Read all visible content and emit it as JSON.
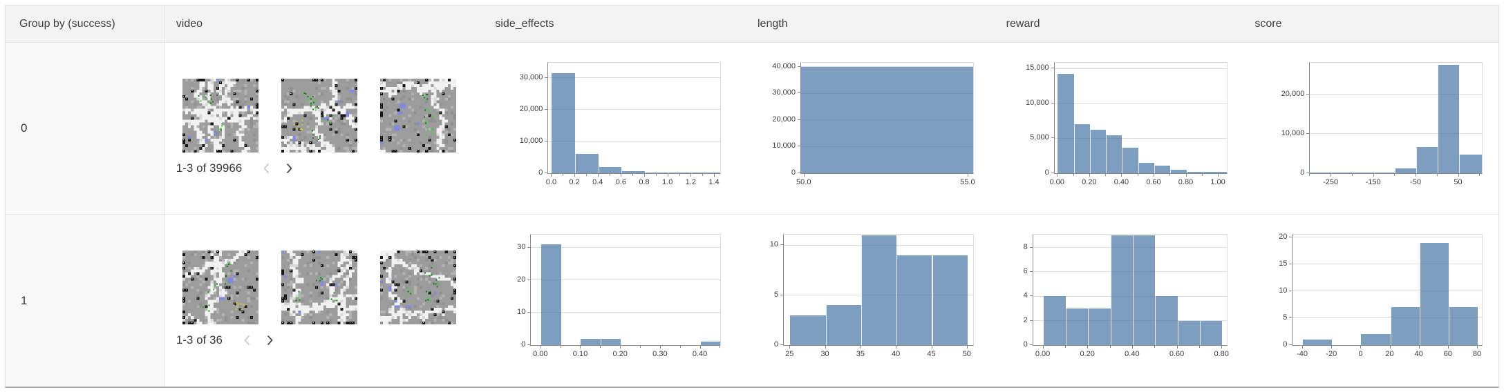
{
  "colors": {
    "bar_fill": "#4c78a8",
    "bar_fill_opacity": 0.72,
    "header_bg": "#f3f3f3",
    "group_column_bg": "#f8f8f8",
    "table_border": "#dedede",
    "table_bottom_border": "#b3b3b3",
    "axis_line": "#8a8a8a",
    "grid_line": "#dcdcdc",
    "tick_text": "#3d3d3d"
  },
  "table": {
    "columns": [
      {
        "key": "group",
        "label": "Group by (success)"
      },
      {
        "key": "video",
        "label": "video"
      },
      {
        "key": "side_effects",
        "label": "side_effects"
      },
      {
        "key": "length",
        "label": "length"
      },
      {
        "key": "reward",
        "label": "reward"
      },
      {
        "key": "score",
        "label": "score"
      }
    ],
    "rows": [
      {
        "group_label": "0",
        "video": {
          "pagination_label": "1-3 of 39966",
          "prev_enabled": false,
          "next_enabled": true,
          "thumbnail_count": 3
        }
      },
      {
        "group_label": "1",
        "video": {
          "pagination_label": "1-3 of 36",
          "prev_enabled": false,
          "next_enabled": true,
          "thumbnail_count": 3
        }
      }
    ]
  },
  "chart_data": [
    {
      "row_group": "0",
      "column": "side_effects",
      "type": "bar",
      "subtype": "histogram",
      "xlim": [
        -0.03,
        1.45
      ],
      "ylim": [
        0,
        34700
      ],
      "grid": true,
      "bins": [
        {
          "x0": 0.0,
          "x1": 0.2,
          "count": 31500
        },
        {
          "x0": 0.2,
          "x1": 0.4,
          "count": 6100
        },
        {
          "x0": 0.4,
          "x1": 0.6,
          "count": 2000
        },
        {
          "x0": 0.6,
          "x1": 0.8,
          "count": 550
        },
        {
          "x0": 0.8,
          "x1": 1.0,
          "count": 150
        },
        {
          "x0": 1.0,
          "x1": 1.2,
          "count": 90
        },
        {
          "x0": 1.2,
          "x1": 1.45,
          "count": 90
        }
      ],
      "xticks": [
        {
          "v": 0,
          "label": "0.0"
        },
        {
          "v": 0.2,
          "label": "0.2"
        },
        {
          "v": 0.4,
          "label": "0.4"
        },
        {
          "v": 0.6,
          "label": "0.6"
        },
        {
          "v": 0.8,
          "label": "0.8"
        },
        {
          "v": 1.0,
          "label": "1.0"
        },
        {
          "v": 1.2,
          "label": "1.2"
        },
        {
          "v": 1.4,
          "label": "1.4"
        }
      ],
      "xminor": [
        0.1,
        0.3,
        0.5,
        0.7,
        0.9,
        1.1,
        1.3
      ],
      "yticks": [
        {
          "v": 0,
          "label": "0"
        },
        {
          "v": 10000,
          "label": "10,000"
        },
        {
          "v": 20000,
          "label": "20,000"
        },
        {
          "v": 30000,
          "label": "30,000"
        }
      ]
    },
    {
      "row_group": "0",
      "column": "length",
      "type": "bar",
      "subtype": "histogram",
      "xlim": [
        49.9,
        55.15
      ],
      "ylim": [
        0,
        41500
      ],
      "grid": true,
      "bins": [
        {
          "x0": 49.9,
          "x1": 55.15,
          "count": 40000
        }
      ],
      "xticks": [
        {
          "v": 50,
          "label": "50.0"
        },
        {
          "v": 55,
          "label": "55.0"
        }
      ],
      "xminor": [],
      "yticks": [
        {
          "v": 0,
          "label": "0"
        },
        {
          "v": 10000,
          "label": "10,000"
        },
        {
          "v": 20000,
          "label": "20,000"
        },
        {
          "v": 30000,
          "label": "30,000"
        },
        {
          "v": 40000,
          "label": "40,000"
        }
      ]
    },
    {
      "row_group": "0",
      "column": "reward",
      "type": "bar",
      "subtype": "histogram",
      "xlim": [
        -0.02,
        1.05
      ],
      "ylim": [
        0,
        15800
      ],
      "grid": true,
      "bins": [
        {
          "x0": 0.0,
          "x1": 0.1,
          "count": 14200
        },
        {
          "x0": 0.1,
          "x1": 0.2,
          "count": 7000
        },
        {
          "x0": 0.2,
          "x1": 0.3,
          "count": 6200
        },
        {
          "x0": 0.3,
          "x1": 0.4,
          "count": 5400
        },
        {
          "x0": 0.4,
          "x1": 0.5,
          "count": 3700
        },
        {
          "x0": 0.5,
          "x1": 0.6,
          "count": 1500
        },
        {
          "x0": 0.6,
          "x1": 0.7,
          "count": 1100
        },
        {
          "x0": 0.7,
          "x1": 0.8,
          "count": 500
        },
        {
          "x0": 0.8,
          "x1": 0.9,
          "count": 200
        },
        {
          "x0": 0.9,
          "x1": 1.05,
          "count": 200
        }
      ],
      "xticks": [
        {
          "v": 0,
          "label": "0.00"
        },
        {
          "v": 0.2,
          "label": "0.20"
        },
        {
          "v": 0.4,
          "label": "0.40"
        },
        {
          "v": 0.6,
          "label": "0.60"
        },
        {
          "v": 0.8,
          "label": "0.80"
        },
        {
          "v": 1.0,
          "label": "1.00"
        }
      ],
      "xminor": [
        0.1,
        0.3,
        0.5,
        0.7,
        0.9
      ],
      "yticks": [
        {
          "v": 0,
          "label": "0"
        },
        {
          "v": 5000,
          "label": "5,000"
        },
        {
          "v": 10000,
          "label": "10,000"
        },
        {
          "v": 15000,
          "label": "15,000"
        }
      ]
    },
    {
      "row_group": "0",
      "column": "score",
      "type": "bar",
      "subtype": "histogram",
      "xlim": [
        -300,
        105
      ],
      "ylim": [
        0,
        28000
      ],
      "grid": true,
      "bins": [
        {
          "x0": -300,
          "x1": -250,
          "count": 100
        },
        {
          "x0": -250,
          "x1": -200,
          "count": 100
        },
        {
          "x0": -200,
          "x1": -150,
          "count": 150
        },
        {
          "x0": -150,
          "x1": -100,
          "count": 250
        },
        {
          "x0": -100,
          "x1": -50,
          "count": 1200
        },
        {
          "x0": -50,
          "x1": 0,
          "count": 6700
        },
        {
          "x0": 0,
          "x1": 50,
          "count": 27500
        },
        {
          "x0": 50,
          "x1": 105,
          "count": 4700
        }
      ],
      "xticks": [
        {
          "v": -250,
          "label": "-250"
        },
        {
          "v": -150,
          "label": "-150"
        },
        {
          "v": -50,
          "label": "-50"
        },
        {
          "v": 50,
          "label": "50"
        }
      ],
      "xminor": [
        -300,
        -200,
        -100,
        0,
        100
      ],
      "yticks": [
        {
          "v": 0,
          "label": "0"
        },
        {
          "v": 10000,
          "label": "10,000"
        },
        {
          "v": 20000,
          "label": "20,000"
        }
      ]
    },
    {
      "row_group": "1",
      "column": "side_effects",
      "type": "bar",
      "subtype": "histogram",
      "xlim": [
        -0.025,
        0.45
      ],
      "ylim": [
        0,
        34
      ],
      "grid": true,
      "bins": [
        {
          "x0": 0.0,
          "x1": 0.05,
          "count": 31
        },
        {
          "x0": 0.1,
          "x1": 0.15,
          "count": 2
        },
        {
          "x0": 0.15,
          "x1": 0.2,
          "count": 2
        },
        {
          "x0": 0.4,
          "x1": 0.45,
          "count": 1
        }
      ],
      "xticks": [
        {
          "v": 0,
          "label": "0.00"
        },
        {
          "v": 0.1,
          "label": "0.10"
        },
        {
          "v": 0.2,
          "label": "0.20"
        },
        {
          "v": 0.3,
          "label": "0.30"
        },
        {
          "v": 0.4,
          "label": "0.40"
        }
      ],
      "xminor": [
        0.05,
        0.15,
        0.25,
        0.35,
        0.45
      ],
      "yticks": [
        {
          "v": 0,
          "label": "0"
        },
        {
          "v": 10,
          "label": "10"
        },
        {
          "v": 20,
          "label": "20"
        },
        {
          "v": 30,
          "label": "30"
        }
      ]
    },
    {
      "row_group": "1",
      "column": "length",
      "type": "bar",
      "subtype": "histogram",
      "xlim": [
        24.1,
        50.8
      ],
      "ylim": [
        0,
        11.05
      ],
      "grid": true,
      "bins": [
        {
          "x0": 25,
          "x1": 30,
          "count": 3
        },
        {
          "x0": 30,
          "x1": 35,
          "count": 4
        },
        {
          "x0": 35,
          "x1": 40,
          "count": 11
        },
        {
          "x0": 40,
          "x1": 45,
          "count": 9
        },
        {
          "x0": 45,
          "x1": 50,
          "count": 9
        }
      ],
      "xticks": [
        {
          "v": 25,
          "label": "25"
        },
        {
          "v": 30,
          "label": "30"
        },
        {
          "v": 35,
          "label": "35"
        },
        {
          "v": 40,
          "label": "40"
        },
        {
          "v": 45,
          "label": "45"
        },
        {
          "v": 50,
          "label": "50"
        }
      ],
      "xminor": [],
      "yticks": [
        {
          "v": 0,
          "label": "0"
        },
        {
          "v": 5,
          "label": "5"
        },
        {
          "v": 10,
          "label": "10"
        }
      ]
    },
    {
      "row_group": "1",
      "column": "reward",
      "type": "bar",
      "subtype": "histogram",
      "xlim": [
        -0.046,
        0.82
      ],
      "ylim": [
        0,
        9.05
      ],
      "grid": true,
      "bins": [
        {
          "x0": 0.0,
          "x1": 0.1,
          "count": 4
        },
        {
          "x0": 0.1,
          "x1": 0.2,
          "count": 3
        },
        {
          "x0": 0.2,
          "x1": 0.3,
          "count": 3
        },
        {
          "x0": 0.3,
          "x1": 0.4,
          "count": 9
        },
        {
          "x0": 0.4,
          "x1": 0.5,
          "count": 9
        },
        {
          "x0": 0.5,
          "x1": 0.6,
          "count": 4
        },
        {
          "x0": 0.6,
          "x1": 0.7,
          "count": 2
        },
        {
          "x0": 0.7,
          "x1": 0.8,
          "count": 2
        }
      ],
      "xticks": [
        {
          "v": 0,
          "label": "0.00"
        },
        {
          "v": 0.2,
          "label": "0.20"
        },
        {
          "v": 0.4,
          "label": "0.40"
        },
        {
          "v": 0.6,
          "label": "0.60"
        },
        {
          "v": 0.8,
          "label": "0.80"
        }
      ],
      "xminor": [
        0.1,
        0.3,
        0.5,
        0.7
      ],
      "yticks": [
        {
          "v": 0,
          "label": "0"
        },
        {
          "v": 2,
          "label": "2"
        },
        {
          "v": 4,
          "label": "4"
        },
        {
          "v": 6,
          "label": "6"
        },
        {
          "v": 8,
          "label": "8"
        }
      ]
    },
    {
      "row_group": "1",
      "column": "score",
      "type": "bar",
      "subtype": "histogram",
      "xlim": [
        -47,
        83
      ],
      "ylim": [
        0,
        20.5
      ],
      "grid": true,
      "bins": [
        {
          "x0": -40,
          "x1": -20,
          "count": 1
        },
        {
          "x0": 0,
          "x1": 20,
          "count": 2
        },
        {
          "x0": 20,
          "x1": 40,
          "count": 7
        },
        {
          "x0": 40,
          "x1": 60,
          "count": 19
        },
        {
          "x0": 60,
          "x1": 80,
          "count": 7
        }
      ],
      "xticks": [
        {
          "v": -40,
          "label": "-40"
        },
        {
          "v": -20,
          "label": "-20"
        },
        {
          "v": 0,
          "label": "0"
        },
        {
          "v": 20,
          "label": "20"
        },
        {
          "v": 40,
          "label": "40"
        },
        {
          "v": 60,
          "label": "60"
        },
        {
          "v": 80,
          "label": "80"
        }
      ],
      "xminor": [],
      "yticks": [
        {
          "v": 0,
          "label": "0"
        },
        {
          "v": 5,
          "label": "5"
        },
        {
          "v": 10,
          "label": "10"
        },
        {
          "v": 15,
          "label": "15"
        },
        {
          "v": 20,
          "label": "20"
        }
      ]
    }
  ]
}
